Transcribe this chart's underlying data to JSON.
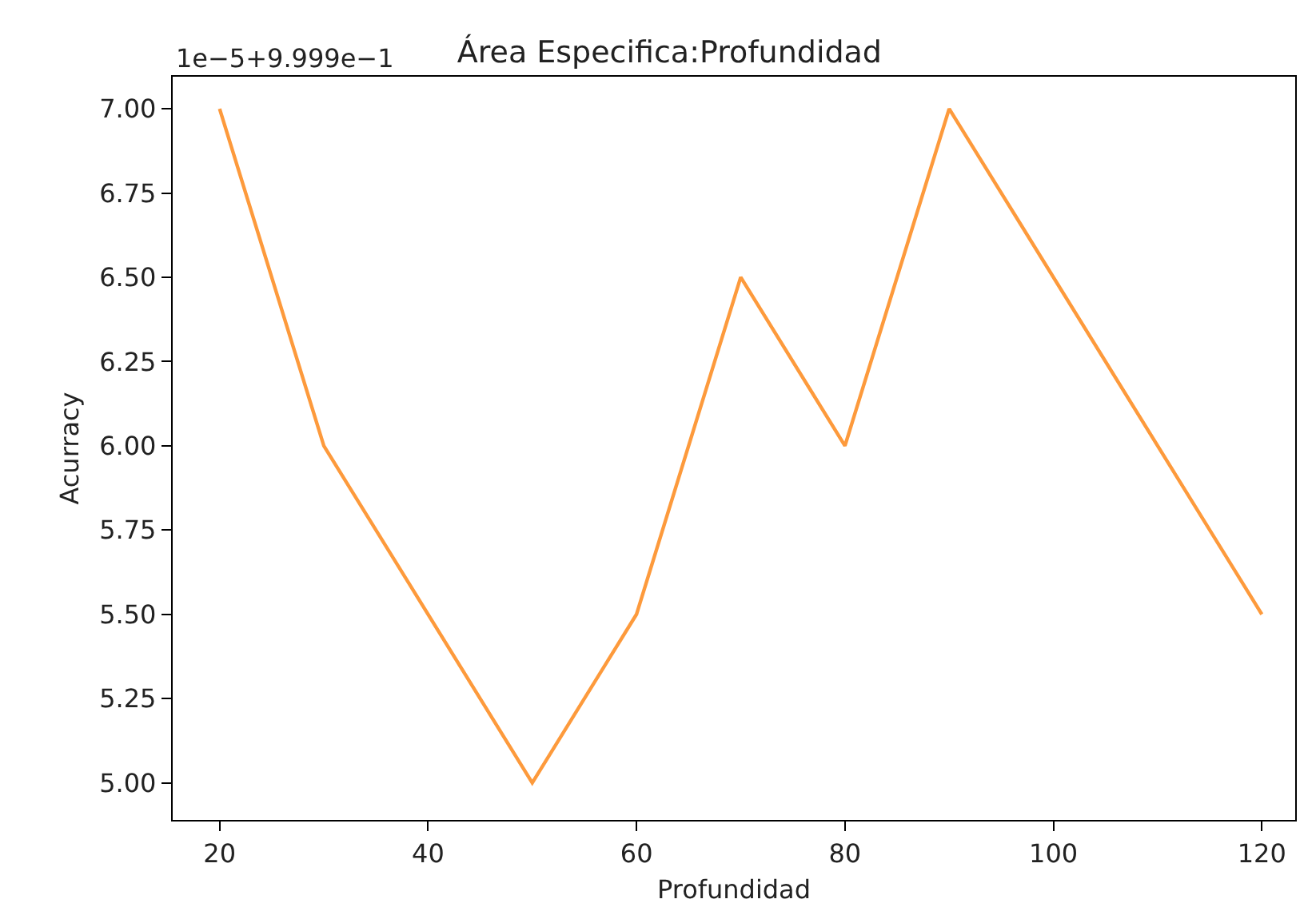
{
  "chart_data": {
    "type": "line",
    "title": "Área Especifica:Profundidad",
    "xlabel": "Profundidad",
    "ylabel": "Acurracy",
    "annotations": [
      "1e−5+9.999e−1"
    ],
    "x": [
      20,
      30,
      50,
      60,
      70,
      80,
      90,
      120
    ],
    "series": [
      {
        "color": "#fd9a3c",
        "values": [
          7.0,
          6.0,
          5.0,
          5.5,
          6.5,
          6.0,
          7.0,
          5.5
        ]
      }
    ],
    "xlim": [
      15.5,
      123.2
    ],
    "xticks": [
      20,
      40,
      60,
      80,
      100,
      120
    ],
    "ylim": [
      4.89,
      7.095
    ],
    "yticks": [
      {
        "value": 5,
        "label": "5.00"
      },
      {
        "value": 5.25,
        "label": "5.25"
      },
      {
        "value": 5.5,
        "label": "5.50"
      },
      {
        "value": 5.75,
        "label": "5.75"
      },
      {
        "value": 6,
        "label": "6.00"
      },
      {
        "value": 6.25,
        "label": "6.25"
      },
      {
        "value": 6.5,
        "label": "6.50"
      },
      {
        "value": 6.75,
        "label": "6.75"
      },
      {
        "value": 7,
        "label": "7.00"
      }
    ],
    "grid": false,
    "legend": false,
    "marker": "none",
    "line_style": "solid"
  }
}
